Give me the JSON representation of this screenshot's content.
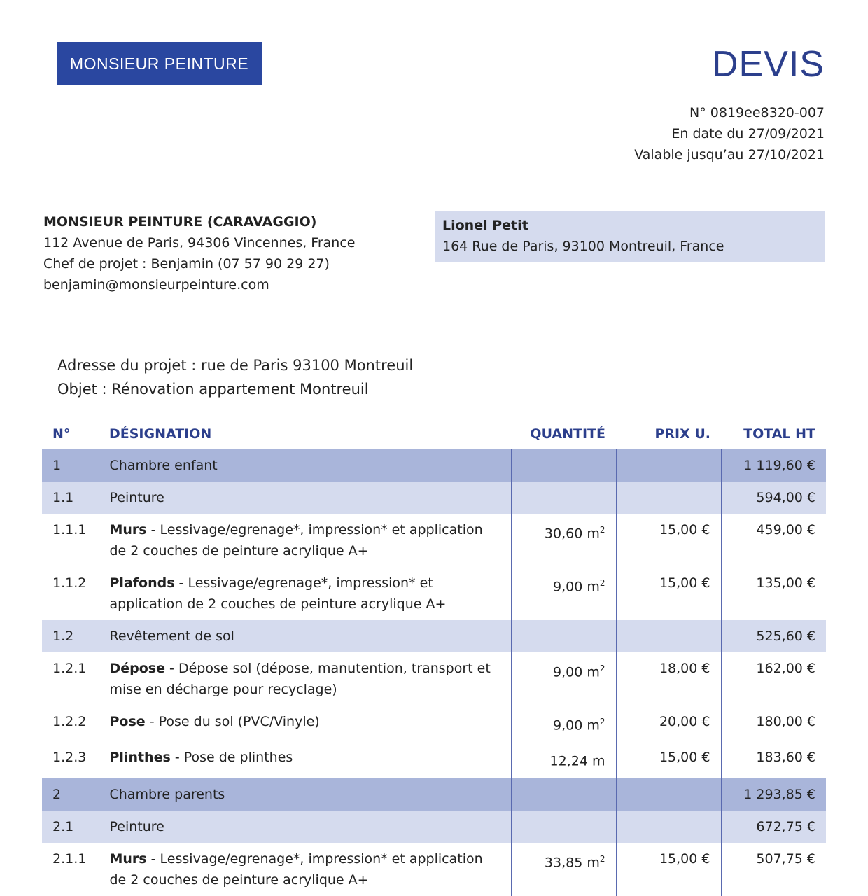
{
  "logo": {
    "text": "MONSIEUR PEINTURE"
  },
  "doc": {
    "title": "DEVIS",
    "number": "N° 0819ee8320-007",
    "date": "En date du 27/09/2021",
    "valid": "Valable jusqu’au 27/10/2021"
  },
  "company": {
    "name": "MONSIEUR PEINTURE (CARAVAGGIO)",
    "address": "112 Avenue de Paris, 94306 Vincennes, France",
    "contact": "Chef de projet : Benjamin (07 57 90 29 27)",
    "email": "benjamin@monsieurpeinture.com"
  },
  "client": {
    "name": "Lionel Petit",
    "address": "164 Rue de Paris, 93100 Montreuil, France"
  },
  "project": {
    "address": "Adresse du projet : rue de Paris 93100 Montreuil",
    "object": "Objet : Rénovation appartement Montreuil"
  },
  "table": {
    "headers": [
      "N°",
      "DÉSIGNATION",
      "QUANTITÉ",
      "PRIX U.",
      "TOTAL HT"
    ],
    "rows": [
      {
        "type": "g",
        "n": "1",
        "title": "Chambre enfant",
        "desc": "",
        "qty": "",
        "unit": "",
        "price": "",
        "total": "1 119,60 €"
      },
      {
        "type": "s",
        "n": "1.1",
        "title": "Peinture",
        "desc": "",
        "qty": "",
        "unit": "",
        "price": "",
        "total": "594,00 €"
      },
      {
        "type": "i",
        "n": "1.1.1",
        "title": "Murs",
        "desc": " - Lessivage/egrenage*, impression* et application de 2 couches de peinture acrylique A+",
        "qty": "30,60 m",
        "unit": "2",
        "price": "15,00 €",
        "total": "459,00 €"
      },
      {
        "type": "i",
        "n": "1.1.2",
        "title": "Plafonds",
        "desc": " - Lessivage/egrenage*, impression* et application de 2 couches de peinture acrylique A+",
        "qty": "9,00 m",
        "unit": "2",
        "price": "15,00 €",
        "total": "135,00 €"
      },
      {
        "type": "s",
        "n": "1.2",
        "title": "Revêtement de sol",
        "desc": "",
        "qty": "",
        "unit": "",
        "price": "",
        "total": "525,60 €"
      },
      {
        "type": "i",
        "n": "1.2.1",
        "title": "Dépose",
        "desc": " - Dépose sol (dépose, manutention, transport et mise en décharge pour recyclage)",
        "qty": "9,00 m",
        "unit": "2",
        "price": "18,00 €",
        "total": "162,00 €"
      },
      {
        "type": "i",
        "n": "1.2.2",
        "title": "Pose",
        "desc": " - Pose du sol (PVC/Vinyle)",
        "qty": "9,00 m",
        "unit": "2",
        "price": "20,00 €",
        "total": "180,00 €"
      },
      {
        "type": "i",
        "n": "1.2.3",
        "title": "Plinthes",
        "desc": " - Pose de plinthes",
        "qty": "12,24 m",
        "unit": "",
        "price": "15,00 €",
        "total": "183,60 €"
      },
      {
        "type": "g",
        "n": "2",
        "title": "Chambre parents",
        "desc": "",
        "qty": "",
        "unit": "",
        "price": "",
        "total": "1 293,85 €"
      },
      {
        "type": "s",
        "n": "2.1",
        "title": "Peinture",
        "desc": "",
        "qty": "",
        "unit": "",
        "price": "",
        "total": "672,75 €"
      },
      {
        "type": "i",
        "n": "2.1.1",
        "title": "Murs",
        "desc": " - Lessivage/egrenage*, impression* et application de 2 couches de peinture acrylique A+",
        "qty": "33,85 m",
        "unit": "2",
        "price": "15,00 €",
        "total": "507,75 €"
      }
    ]
  },
  "colors": {
    "brand": "#2a47a0",
    "header": "#2c3f8c",
    "group_row": "#a9b5da",
    "subgroup_row": "#d5dbee"
  }
}
